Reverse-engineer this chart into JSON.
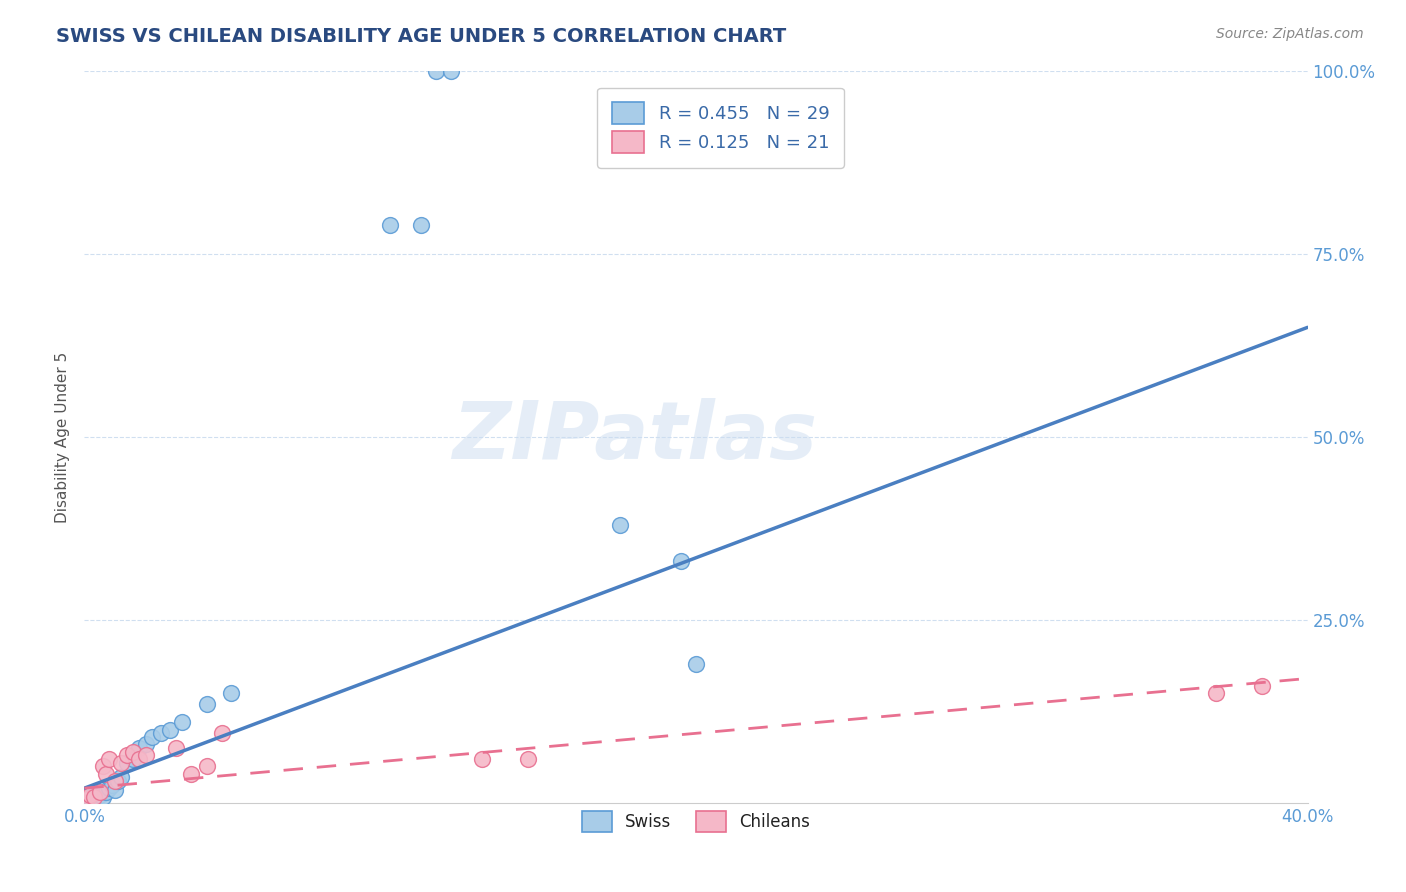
{
  "title": "SWISS VS CHILEAN DISABILITY AGE UNDER 5 CORRELATION CHART",
  "source": "Source: ZipAtlas.com",
  "ylabel": "Disability Age Under 5",
  "xlim": [
    0.0,
    0.4
  ],
  "ylim": [
    0.0,
    1.0
  ],
  "xtick_positions": [
    0.0,
    0.08,
    0.16,
    0.24,
    0.32,
    0.4
  ],
  "xtick_labels": [
    "0.0%",
    "",
    "",
    "",
    "",
    "40.0%"
  ],
  "ytick_positions": [
    0.25,
    0.5,
    0.75,
    1.0
  ],
  "ytick_labels": [
    "25.0%",
    "50.0%",
    "75.0%",
    "100.0%"
  ],
  "swiss_color": "#a8cce8",
  "chilean_color": "#f5b8c8",
  "swiss_edge_color": "#5b9bd5",
  "chilean_edge_color": "#e87090",
  "swiss_line_color": "#4a7fc1",
  "chilean_line_color": "#e87090",
  "swiss_R": 0.455,
  "swiss_N": 29,
  "chilean_R": 0.125,
  "chilean_N": 21,
  "background_color": "#ffffff",
  "grid_color": "#d0dff0",
  "tick_color": "#5b9bd5",
  "title_color": "#2a4a80",
  "source_color": "#888888",
  "ylabel_color": "#555555",
  "swiss_x": [
    0.001,
    0.002,
    0.003,
    0.004,
    0.005,
    0.006,
    0.007,
    0.008,
    0.009,
    0.01,
    0.011,
    0.012,
    0.014,
    0.016,
    0.018,
    0.02,
    0.022,
    0.025,
    0.028,
    0.032,
    0.04,
    0.048,
    0.1,
    0.11,
    0.115,
    0.12,
    0.175,
    0.195,
    0.2
  ],
  "swiss_y": [
    0.005,
    0.008,
    0.008,
    0.012,
    0.01,
    0.008,
    0.015,
    0.02,
    0.025,
    0.018,
    0.03,
    0.035,
    0.055,
    0.06,
    0.075,
    0.08,
    0.09,
    0.095,
    0.1,
    0.11,
    0.135,
    0.15,
    0.79,
    0.79,
    1.0,
    1.0,
    0.38,
    0.33,
    0.19
  ],
  "chilean_x": [
    0.001,
    0.002,
    0.003,
    0.005,
    0.006,
    0.007,
    0.008,
    0.01,
    0.012,
    0.014,
    0.016,
    0.018,
    0.02,
    0.03,
    0.035,
    0.04,
    0.045,
    0.13,
    0.145,
    0.37,
    0.385
  ],
  "chilean_y": [
    0.005,
    0.01,
    0.008,
    0.015,
    0.05,
    0.04,
    0.06,
    0.03,
    0.055,
    0.065,
    0.07,
    0.06,
    0.065,
    0.075,
    0.04,
    0.05,
    0.095,
    0.06,
    0.06,
    0.15,
    0.16
  ],
  "swiss_line_x0": 0.0,
  "swiss_line_y0": 0.02,
  "swiss_line_x1": 0.4,
  "swiss_line_y1": 0.65,
  "chilean_line_x0": 0.0,
  "chilean_line_y0": 0.02,
  "chilean_line_x1": 0.4,
  "chilean_line_y1": 0.17
}
